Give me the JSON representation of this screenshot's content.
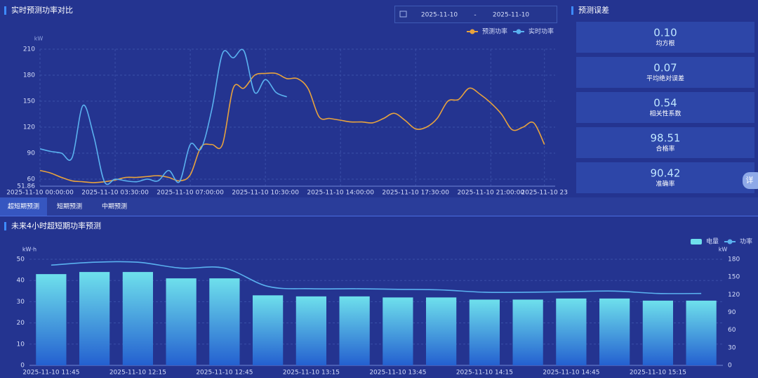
{
  "header": {
    "title": "实时预测功率对比",
    "date_start": "2025-11-10",
    "date_sep": "-",
    "date_end": "2025-11-10"
  },
  "error_panel": {
    "title": "预测误差",
    "metrics": [
      {
        "value": "0.10",
        "label": "均方根"
      },
      {
        "value": "0.07",
        "label": "平均绝对误差"
      },
      {
        "value": "0.54",
        "label": "相关性系数"
      },
      {
        "value": "98.51",
        "label": "合格率"
      },
      {
        "value": "90.42",
        "label": "准确率"
      }
    ]
  },
  "side_button": "详",
  "tabs": [
    "超短期预测",
    "短期预测",
    "中期预测"
  ],
  "active_tab": 0,
  "section_title": "未来4小时超短期功率预测",
  "chart_data": [
    {
      "type": "line",
      "y_label": "kW",
      "grid": true,
      "legend": "top-right",
      "x": [
        "2025-11-10 00:00:00",
        "2025-11-10 00:30:00",
        "2025-11-10 01:00:00",
        "2025-11-10 01:30:00",
        "2025-11-10 02:00:00",
        "2025-11-10 02:30:00",
        "2025-11-10 03:00:00",
        "2025-11-10 03:30:00",
        "2025-11-10 04:00:00",
        "2025-11-10 04:30:00",
        "2025-11-10 05:00:00",
        "2025-11-10 05:30:00",
        "2025-11-10 06:00:00",
        "2025-11-10 06:30:00",
        "2025-11-10 07:00:00",
        "2025-11-10 07:30:00",
        "2025-11-10 08:00:00",
        "2025-11-10 08:30:00",
        "2025-11-10 09:00:00",
        "2025-11-10 09:30:00",
        "2025-11-10 10:00:00",
        "2025-11-10 10:30:00",
        "2025-11-10 11:00:00",
        "2025-11-10 11:30:00",
        "2025-11-10 12:00:00",
        "2025-11-10 12:30:00",
        "2025-11-10 13:00:00",
        "2025-11-10 13:30:00",
        "2025-11-10 14:00:00",
        "2025-11-10 14:30:00",
        "2025-11-10 15:00:00",
        "2025-11-10 15:30:00",
        "2025-11-10 16:00:00",
        "2025-11-10 16:30:00",
        "2025-11-10 17:00:00",
        "2025-11-10 17:30:00",
        "2025-11-10 18:00:00",
        "2025-11-10 18:30:00",
        "2025-11-10 19:00:00",
        "2025-11-10 19:30:00",
        "2025-11-10 20:00:00",
        "2025-11-10 20:30:00",
        "2025-11-10 21:00:00",
        "2025-11-10 21:30:00",
        "2025-11-10 22:00:00",
        "2025-11-10 22:30:00",
        "2025-11-10 23:00:00",
        "2025-11-10 23:30:00"
      ],
      "series": [
        {
          "name": "预测功率",
          "color": "#e8a33d",
          "values": [
            70,
            67,
            62,
            58,
            57,
            56,
            57,
            59,
            62,
            62,
            63,
            64,
            62,
            58,
            65,
            97,
            100,
            100,
            165,
            165,
            180,
            182,
            182,
            176,
            176,
            164,
            132,
            130,
            128,
            126,
            126,
            125,
            130,
            136,
            128,
            118,
            120,
            130,
            150,
            152,
            165,
            158,
            148,
            135,
            117,
            120,
            125,
            100
          ]
        },
        {
          "name": "实时功率",
          "color": "#5ab1ef",
          "values": [
            95,
            92,
            90,
            85,
            145,
            110,
            57,
            60,
            58,
            57,
            60,
            58,
            70,
            57,
            100,
            95,
            140,
            205,
            200,
            208,
            160,
            175,
            160,
            155,
            null,
            null,
            null,
            null,
            null,
            null,
            null,
            null,
            null,
            null,
            null,
            null,
            null,
            null,
            null,
            null,
            null,
            null,
            null,
            null,
            null,
            null,
            null,
            null
          ]
        }
      ],
      "xlim": [
        "2025-11-10 00:00:00",
        "2025-11-10 23:59:59"
      ],
      "xticks": [
        "2025-11-10 00:00:00",
        "2025-11-10 03:30:00",
        "2025-11-10 07:00:00",
        "2025-11-10 10:30:00",
        "2025-11-10 14:00:00",
        "2025-11-10 17:30:00",
        "2025-11-10 21:00:00",
        {
          "value": "2025-11-10 23:30:00",
          "label": "2025-11-10 23"
        }
      ],
      "ylim": [
        51.86,
        210
      ],
      "yticks": [
        51.86,
        60,
        90,
        120,
        150,
        180,
        210
      ]
    },
    {
      "type": "bar-line",
      "y_label": "kW·h",
      "y2_label": "kW",
      "grid": true,
      "legend": "top-right",
      "categories": [
        "2025-11-10 11:45",
        null,
        "2025-11-10 12:15",
        null,
        "2025-11-10 12:45",
        null,
        "2025-11-10 13:15",
        null,
        "2025-11-10 13:45",
        null,
        "2025-11-10 14:15",
        null,
        "2025-11-10 14:45",
        null,
        "2025-11-10 15:15",
        null
      ],
      "series": [
        {
          "name": "电量",
          "type": "bar",
          "color": "#6ee0ec",
          "values": [
            43,
            44,
            44,
            41,
            41,
            33,
            32.5,
            32.5,
            32,
            32,
            31,
            31,
            31.5,
            31.5,
            30.5,
            30.5
          ]
        },
        {
          "name": "功率",
          "type": "line",
          "axis": "y2",
          "color": "#5ab1ef",
          "values": [
            170,
            175,
            175,
            165,
            165,
            134,
            130,
            130,
            129,
            128,
            124,
            124,
            125,
            126,
            122,
            122
          ]
        }
      ],
      "ylim": [
        0,
        50
      ],
      "yticks": [
        0,
        10,
        20,
        30,
        40,
        50
      ],
      "y2lim": [
        0,
        180
      ],
      "y2ticks": [
        0,
        30,
        60,
        90,
        120,
        150,
        180
      ]
    }
  ]
}
